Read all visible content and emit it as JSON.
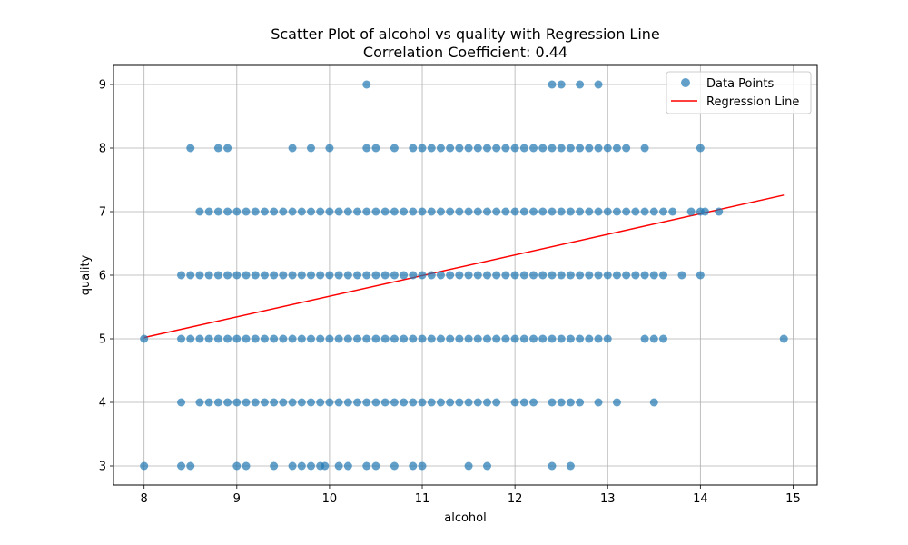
{
  "chart_data": {
    "type": "scatter",
    "title": "Scatter Plot of alcohol vs quality with Regression Line",
    "subtitle": "Correlation Coefficient: 0.44",
    "xlabel": "alcohol",
    "ylabel": "quality",
    "xlim": [
      7.67,
      15.26
    ],
    "ylim": [
      2.7,
      9.3
    ],
    "xticks": [
      "8",
      "9",
      "10",
      "11",
      "12",
      "13",
      "14",
      "15"
    ],
    "yticks": [
      "3",
      "4",
      "5",
      "6",
      "7",
      "8",
      "9"
    ],
    "grid": true,
    "legend": {
      "placement": "top-right",
      "entries": [
        {
          "label": "Data Points",
          "kind": "marker"
        },
        {
          "label": "Regression Line",
          "kind": "line"
        }
      ]
    },
    "colors": {
      "points": "#1f77b4",
      "regression": "#ff0000"
    },
    "series": [
      {
        "name": "Data Points",
        "kind": "scatter",
        "points": [
          {
            "x": 10.4,
            "y": 9
          },
          {
            "x": 12.4,
            "y": 9
          },
          {
            "x": 12.5,
            "y": 9
          },
          {
            "x": 12.7,
            "y": 9
          },
          {
            "x": 12.9,
            "y": 9
          },
          {
            "x": 8.5,
            "y": 8
          },
          {
            "x": 8.8,
            "y": 8
          },
          {
            "x": 8.9,
            "y": 8
          },
          {
            "x": 9.6,
            "y": 8
          },
          {
            "x": 9.8,
            "y": 8
          },
          {
            "x": 10.0,
            "y": 8
          },
          {
            "x": 10.4,
            "y": 8
          },
          {
            "x": 10.5,
            "y": 8
          },
          {
            "x": 10.7,
            "y": 8
          },
          {
            "x": 10.9,
            "y": 8
          },
          {
            "x": 11.0,
            "y": 8
          },
          {
            "x": 11.1,
            "y": 8
          },
          {
            "x": 11.2,
            "y": 8
          },
          {
            "x": 11.3,
            "y": 8
          },
          {
            "x": 11.4,
            "y": 8
          },
          {
            "x": 11.5,
            "y": 8
          },
          {
            "x": 11.6,
            "y": 8
          },
          {
            "x": 11.7,
            "y": 8
          },
          {
            "x": 11.8,
            "y": 8
          },
          {
            "x": 11.9,
            "y": 8
          },
          {
            "x": 12.0,
            "y": 8
          },
          {
            "x": 12.1,
            "y": 8
          },
          {
            "x": 12.2,
            "y": 8
          },
          {
            "x": 12.3,
            "y": 8
          },
          {
            "x": 12.4,
            "y": 8
          },
          {
            "x": 12.5,
            "y": 8
          },
          {
            "x": 12.6,
            "y": 8
          },
          {
            "x": 12.7,
            "y": 8
          },
          {
            "x": 12.8,
            "y": 8
          },
          {
            "x": 12.9,
            "y": 8
          },
          {
            "x": 13.0,
            "y": 8
          },
          {
            "x": 13.1,
            "y": 8
          },
          {
            "x": 13.2,
            "y": 8
          },
          {
            "x": 13.4,
            "y": 8
          },
          {
            "x": 14.0,
            "y": 8
          },
          {
            "x": 8.6,
            "y": 7
          },
          {
            "x": 8.7,
            "y": 7
          },
          {
            "x": 8.8,
            "y": 7
          },
          {
            "x": 8.9,
            "y": 7
          },
          {
            "x": 9.0,
            "y": 7
          },
          {
            "x": 9.1,
            "y": 7
          },
          {
            "x": 9.2,
            "y": 7
          },
          {
            "x": 9.3,
            "y": 7
          },
          {
            "x": 9.4,
            "y": 7
          },
          {
            "x": 9.5,
            "y": 7
          },
          {
            "x": 9.6,
            "y": 7
          },
          {
            "x": 9.7,
            "y": 7
          },
          {
            "x": 9.8,
            "y": 7
          },
          {
            "x": 9.9,
            "y": 7
          },
          {
            "x": 10.0,
            "y": 7
          },
          {
            "x": 10.1,
            "y": 7
          },
          {
            "x": 10.2,
            "y": 7
          },
          {
            "x": 10.3,
            "y": 7
          },
          {
            "x": 10.4,
            "y": 7
          },
          {
            "x": 10.5,
            "y": 7
          },
          {
            "x": 10.6,
            "y": 7
          },
          {
            "x": 10.7,
            "y": 7
          },
          {
            "x": 10.8,
            "y": 7
          },
          {
            "x": 10.9,
            "y": 7
          },
          {
            "x": 11.0,
            "y": 7
          },
          {
            "x": 11.1,
            "y": 7
          },
          {
            "x": 11.2,
            "y": 7
          },
          {
            "x": 11.3,
            "y": 7
          },
          {
            "x": 11.4,
            "y": 7
          },
          {
            "x": 11.5,
            "y": 7
          },
          {
            "x": 11.6,
            "y": 7
          },
          {
            "x": 11.7,
            "y": 7
          },
          {
            "x": 11.8,
            "y": 7
          },
          {
            "x": 11.9,
            "y": 7
          },
          {
            "x": 12.0,
            "y": 7
          },
          {
            "x": 12.1,
            "y": 7
          },
          {
            "x": 12.2,
            "y": 7
          },
          {
            "x": 12.3,
            "y": 7
          },
          {
            "x": 12.4,
            "y": 7
          },
          {
            "x": 12.5,
            "y": 7
          },
          {
            "x": 12.6,
            "y": 7
          },
          {
            "x": 12.7,
            "y": 7
          },
          {
            "x": 12.8,
            "y": 7
          },
          {
            "x": 12.9,
            "y": 7
          },
          {
            "x": 13.0,
            "y": 7
          },
          {
            "x": 13.1,
            "y": 7
          },
          {
            "x": 13.2,
            "y": 7
          },
          {
            "x": 13.3,
            "y": 7
          },
          {
            "x": 13.4,
            "y": 7
          },
          {
            "x": 13.5,
            "y": 7
          },
          {
            "x": 13.6,
            "y": 7
          },
          {
            "x": 13.7,
            "y": 7
          },
          {
            "x": 13.9,
            "y": 7
          },
          {
            "x": 14.0,
            "y": 7
          },
          {
            "x": 14.05,
            "y": 7
          },
          {
            "x": 14.2,
            "y": 7
          },
          {
            "x": 8.4,
            "y": 6
          },
          {
            "x": 8.5,
            "y": 6
          },
          {
            "x": 8.6,
            "y": 6
          },
          {
            "x": 8.7,
            "y": 6
          },
          {
            "x": 8.8,
            "y": 6
          },
          {
            "x": 8.9,
            "y": 6
          },
          {
            "x": 9.0,
            "y": 6
          },
          {
            "x": 9.1,
            "y": 6
          },
          {
            "x": 9.2,
            "y": 6
          },
          {
            "x": 9.3,
            "y": 6
          },
          {
            "x": 9.4,
            "y": 6
          },
          {
            "x": 9.5,
            "y": 6
          },
          {
            "x": 9.6,
            "y": 6
          },
          {
            "x": 9.7,
            "y": 6
          },
          {
            "x": 9.8,
            "y": 6
          },
          {
            "x": 9.9,
            "y": 6
          },
          {
            "x": 10.0,
            "y": 6
          },
          {
            "x": 10.1,
            "y": 6
          },
          {
            "x": 10.2,
            "y": 6
          },
          {
            "x": 10.3,
            "y": 6
          },
          {
            "x": 10.4,
            "y": 6
          },
          {
            "x": 10.5,
            "y": 6
          },
          {
            "x": 10.6,
            "y": 6
          },
          {
            "x": 10.7,
            "y": 6
          },
          {
            "x": 10.8,
            "y": 6
          },
          {
            "x": 10.9,
            "y": 6
          },
          {
            "x": 11.0,
            "y": 6
          },
          {
            "x": 11.1,
            "y": 6
          },
          {
            "x": 11.2,
            "y": 6
          },
          {
            "x": 11.3,
            "y": 6
          },
          {
            "x": 11.4,
            "y": 6
          },
          {
            "x": 11.5,
            "y": 6
          },
          {
            "x": 11.6,
            "y": 6
          },
          {
            "x": 11.7,
            "y": 6
          },
          {
            "x": 11.8,
            "y": 6
          },
          {
            "x": 11.9,
            "y": 6
          },
          {
            "x": 12.0,
            "y": 6
          },
          {
            "x": 12.1,
            "y": 6
          },
          {
            "x": 12.2,
            "y": 6
          },
          {
            "x": 12.3,
            "y": 6
          },
          {
            "x": 12.4,
            "y": 6
          },
          {
            "x": 12.5,
            "y": 6
          },
          {
            "x": 12.6,
            "y": 6
          },
          {
            "x": 12.7,
            "y": 6
          },
          {
            "x": 12.8,
            "y": 6
          },
          {
            "x": 12.9,
            "y": 6
          },
          {
            "x": 13.0,
            "y": 6
          },
          {
            "x": 13.1,
            "y": 6
          },
          {
            "x": 13.2,
            "y": 6
          },
          {
            "x": 13.3,
            "y": 6
          },
          {
            "x": 13.4,
            "y": 6
          },
          {
            "x": 13.5,
            "y": 6
          },
          {
            "x": 13.6,
            "y": 6
          },
          {
            "x": 13.8,
            "y": 6
          },
          {
            "x": 14.0,
            "y": 6
          },
          {
            "x": 8.0,
            "y": 5
          },
          {
            "x": 8.4,
            "y": 5
          },
          {
            "x": 8.5,
            "y": 5
          },
          {
            "x": 8.6,
            "y": 5
          },
          {
            "x": 8.7,
            "y": 5
          },
          {
            "x": 8.8,
            "y": 5
          },
          {
            "x": 8.9,
            "y": 5
          },
          {
            "x": 9.0,
            "y": 5
          },
          {
            "x": 9.1,
            "y": 5
          },
          {
            "x": 9.2,
            "y": 5
          },
          {
            "x": 9.3,
            "y": 5
          },
          {
            "x": 9.4,
            "y": 5
          },
          {
            "x": 9.5,
            "y": 5
          },
          {
            "x": 9.6,
            "y": 5
          },
          {
            "x": 9.7,
            "y": 5
          },
          {
            "x": 9.8,
            "y": 5
          },
          {
            "x": 9.9,
            "y": 5
          },
          {
            "x": 10.0,
            "y": 5
          },
          {
            "x": 10.1,
            "y": 5
          },
          {
            "x": 10.2,
            "y": 5
          },
          {
            "x": 10.3,
            "y": 5
          },
          {
            "x": 10.4,
            "y": 5
          },
          {
            "x": 10.5,
            "y": 5
          },
          {
            "x": 10.6,
            "y": 5
          },
          {
            "x": 10.7,
            "y": 5
          },
          {
            "x": 10.8,
            "y": 5
          },
          {
            "x": 10.9,
            "y": 5
          },
          {
            "x": 11.0,
            "y": 5
          },
          {
            "x": 11.1,
            "y": 5
          },
          {
            "x": 11.2,
            "y": 5
          },
          {
            "x": 11.3,
            "y": 5
          },
          {
            "x": 11.4,
            "y": 5
          },
          {
            "x": 11.5,
            "y": 5
          },
          {
            "x": 11.6,
            "y": 5
          },
          {
            "x": 11.7,
            "y": 5
          },
          {
            "x": 11.8,
            "y": 5
          },
          {
            "x": 11.9,
            "y": 5
          },
          {
            "x": 12.0,
            "y": 5
          },
          {
            "x": 12.1,
            "y": 5
          },
          {
            "x": 12.2,
            "y": 5
          },
          {
            "x": 12.3,
            "y": 5
          },
          {
            "x": 12.4,
            "y": 5
          },
          {
            "x": 12.5,
            "y": 5
          },
          {
            "x": 12.6,
            "y": 5
          },
          {
            "x": 12.7,
            "y": 5
          },
          {
            "x": 12.8,
            "y": 5
          },
          {
            "x": 12.9,
            "y": 5
          },
          {
            "x": 13.0,
            "y": 5
          },
          {
            "x": 13.4,
            "y": 5
          },
          {
            "x": 13.5,
            "y": 5
          },
          {
            "x": 13.6,
            "y": 5
          },
          {
            "x": 14.9,
            "y": 5
          },
          {
            "x": 8.4,
            "y": 4
          },
          {
            "x": 8.6,
            "y": 4
          },
          {
            "x": 8.7,
            "y": 4
          },
          {
            "x": 8.8,
            "y": 4
          },
          {
            "x": 8.9,
            "y": 4
          },
          {
            "x": 9.0,
            "y": 4
          },
          {
            "x": 9.1,
            "y": 4
          },
          {
            "x": 9.2,
            "y": 4
          },
          {
            "x": 9.3,
            "y": 4
          },
          {
            "x": 9.4,
            "y": 4
          },
          {
            "x": 9.5,
            "y": 4
          },
          {
            "x": 9.6,
            "y": 4
          },
          {
            "x": 9.7,
            "y": 4
          },
          {
            "x": 9.8,
            "y": 4
          },
          {
            "x": 9.9,
            "y": 4
          },
          {
            "x": 10.0,
            "y": 4
          },
          {
            "x": 10.1,
            "y": 4
          },
          {
            "x": 10.2,
            "y": 4
          },
          {
            "x": 10.3,
            "y": 4
          },
          {
            "x": 10.4,
            "y": 4
          },
          {
            "x": 10.5,
            "y": 4
          },
          {
            "x": 10.6,
            "y": 4
          },
          {
            "x": 10.7,
            "y": 4
          },
          {
            "x": 10.8,
            "y": 4
          },
          {
            "x": 10.9,
            "y": 4
          },
          {
            "x": 11.0,
            "y": 4
          },
          {
            "x": 11.1,
            "y": 4
          },
          {
            "x": 11.2,
            "y": 4
          },
          {
            "x": 11.3,
            "y": 4
          },
          {
            "x": 11.4,
            "y": 4
          },
          {
            "x": 11.5,
            "y": 4
          },
          {
            "x": 11.6,
            "y": 4
          },
          {
            "x": 11.7,
            "y": 4
          },
          {
            "x": 11.8,
            "y": 4
          },
          {
            "x": 12.0,
            "y": 4
          },
          {
            "x": 12.1,
            "y": 4
          },
          {
            "x": 12.2,
            "y": 4
          },
          {
            "x": 12.4,
            "y": 4
          },
          {
            "x": 12.5,
            "y": 4
          },
          {
            "x": 12.6,
            "y": 4
          },
          {
            "x": 12.7,
            "y": 4
          },
          {
            "x": 12.9,
            "y": 4
          },
          {
            "x": 13.1,
            "y": 4
          },
          {
            "x": 13.5,
            "y": 4
          },
          {
            "x": 8.0,
            "y": 3
          },
          {
            "x": 8.4,
            "y": 3
          },
          {
            "x": 8.5,
            "y": 3
          },
          {
            "x": 9.0,
            "y": 3
          },
          {
            "x": 9.1,
            "y": 3
          },
          {
            "x": 9.4,
            "y": 3
          },
          {
            "x": 9.6,
            "y": 3
          },
          {
            "x": 9.7,
            "y": 3
          },
          {
            "x": 9.8,
            "y": 3
          },
          {
            "x": 9.9,
            "y": 3
          },
          {
            "x": 9.95,
            "y": 3
          },
          {
            "x": 10.1,
            "y": 3
          },
          {
            "x": 10.2,
            "y": 3
          },
          {
            "x": 10.4,
            "y": 3
          },
          {
            "x": 10.5,
            "y": 3
          },
          {
            "x": 10.7,
            "y": 3
          },
          {
            "x": 10.9,
            "y": 3
          },
          {
            "x": 11.0,
            "y": 3
          },
          {
            "x": 11.5,
            "y": 3
          },
          {
            "x": 11.7,
            "y": 3
          },
          {
            "x": 12.4,
            "y": 3
          },
          {
            "x": 12.6,
            "y": 3
          }
        ]
      },
      {
        "name": "Regression Line",
        "kind": "line",
        "points": [
          {
            "x": 8.0,
            "y": 5.02
          },
          {
            "x": 14.9,
            "y": 7.26
          }
        ]
      }
    ]
  }
}
